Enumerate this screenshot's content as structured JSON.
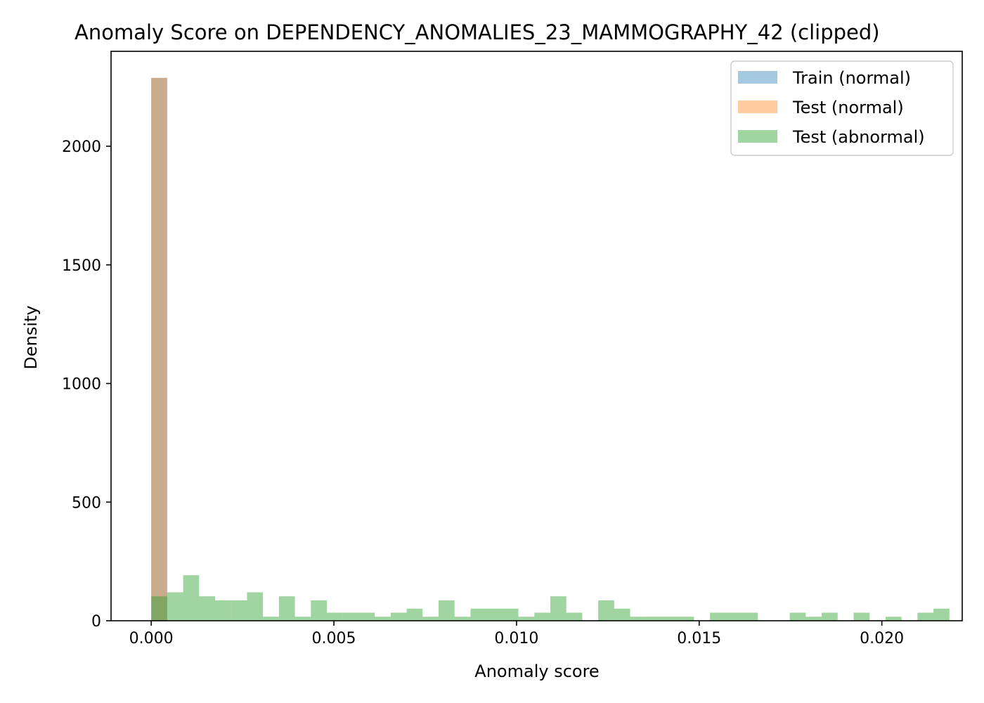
{
  "chart_data": {
    "type": "bar",
    "title": "Anomaly Score on DEPENDENCY_ANOMALIES_23_MAMMOGRAPHY_42 (clipped)",
    "xlabel": "Anomaly score",
    "ylabel": "Density",
    "xlim": [
      -0.0011,
      0.0222
    ],
    "ylim": [
      0,
      2400
    ],
    "x_ticks": [
      0.0,
      0.005,
      0.01,
      0.015,
      0.02
    ],
    "x_tick_labels": [
      "0.000",
      "0.005",
      "0.010",
      "0.015",
      "0.020"
    ],
    "y_ticks": [
      0,
      500,
      1000,
      1500,
      2000
    ],
    "y_tick_labels": [
      "0",
      "500",
      "1000",
      "1500",
      "2000"
    ],
    "grid": false,
    "legend_position": "top-right",
    "bin_width": 0.000437,
    "series": [
      {
        "name": "Train (normal)",
        "color": "#1f77b4",
        "opacity": 0.4,
        "x": [
          0.0
        ],
        "values": [
          2288
        ]
      },
      {
        "name": "Test (normal)",
        "color": "#ff7f0e",
        "opacity": 0.4,
        "x": [
          0.0
        ],
        "values": [
          2288
        ]
      },
      {
        "name": "Test (abnormal)",
        "color": "#2ca02c",
        "opacity": 0.45,
        "x": [
          0.0,
          0.000437,
          0.000874,
          0.001311,
          0.001748,
          0.002185,
          0.002622,
          0.003059,
          0.003496,
          0.003933,
          0.00437,
          0.004807,
          0.005244,
          0.005681,
          0.006118,
          0.006555,
          0.006992,
          0.007429,
          0.007866,
          0.008303,
          0.00874,
          0.009177,
          0.009614,
          0.010051,
          0.010488,
          0.010925,
          0.011362,
          0.011799,
          0.012236,
          0.012673,
          0.01311,
          0.013547,
          0.013984,
          0.014421,
          0.014858,
          0.015295,
          0.015732,
          0.016169,
          0.016606,
          0.017043,
          0.01748,
          0.017917,
          0.018354,
          0.018791,
          0.019228,
          0.019665,
          0.020102,
          0.020539,
          0.020976,
          0.021413
        ],
        "values": [
          103,
          120,
          192,
          103,
          86,
          86,
          120,
          17,
          103,
          17,
          86,
          34,
          34,
          34,
          17,
          34,
          51,
          17,
          86,
          17,
          51,
          51,
          51,
          17,
          34,
          103,
          34,
          0,
          86,
          51,
          17,
          17,
          17,
          17,
          0,
          34,
          34,
          34,
          0,
          0,
          34,
          17,
          34,
          0,
          34,
          0,
          17,
          0,
          34,
          51
        ]
      }
    ]
  }
}
